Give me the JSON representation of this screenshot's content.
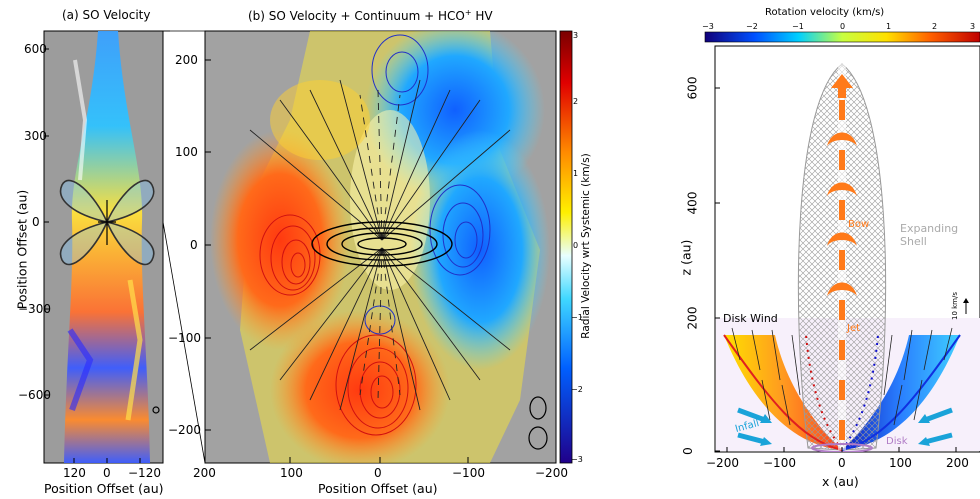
{
  "panel_a": {
    "title": "(a) SO Velocity",
    "xlabel": "Position Offset (au)",
    "ylabel": "Position Offset (au)",
    "xticks": [
      "120",
      "0",
      "−120"
    ],
    "yticks": [
      "600",
      "300",
      "0",
      "−300",
      "−600"
    ]
  },
  "panel_b": {
    "title_prefix": "(b) SO Velocity + Continuum + HCO",
    "title_sup": "+",
    "title_suffix": " HV",
    "xlabel": "Position Offset (au)",
    "ylabel": "",
    "xticks": [
      "200",
      "100",
      "0",
      "−100",
      "−200"
    ],
    "yticks": [
      "200",
      "100",
      "0",
      "−100",
      "−200"
    ],
    "colorbar": {
      "label": "Radial Velocity wrt Systemic (km/s)",
      "ticks": [
        "3",
        "2",
        "1",
        "0",
        "−1",
        "−2",
        "−3"
      ]
    }
  },
  "panel_c": {
    "colorbar_label": "Rotation velocity (km/s)",
    "colorbar_ticks": [
      "−3",
      "−2",
      "−1",
      "0",
      "1",
      "2",
      "3"
    ],
    "xlabel": "x (au)",
    "ylabel": "z (au)",
    "xticks": [
      "−200",
      "−100",
      "0",
      "100",
      "200"
    ],
    "yticks": [
      "600",
      "400",
      "200",
      "0"
    ],
    "annotations": {
      "bow": "Bow",
      "jet": "Jet",
      "shell": "Expanding Shell",
      "shell_line1": "Expanding",
      "shell_line2": "Shell",
      "disk_wind": "Disk Wind",
      "infall": "Infall",
      "disk": "Disk",
      "scale": "10 km/s"
    }
  },
  "colors": {
    "jet": "#ff7a1a",
    "infall": "#1aa3d9",
    "disk": "#b07cc6",
    "shell": "#bbbbbb",
    "blue_contour": "#2030c8",
    "red_contour": "#c01010"
  },
  "chart_data": [
    {
      "type": "heatmap",
      "title": "(a) SO Velocity",
      "xlabel": "Position Offset (au)",
      "ylabel": "Position Offset (au)",
      "xlim": [
        180,
        -180
      ],
      "ylim": [
        -760,
        640
      ],
      "x_ticks": [
        120,
        0,
        -120
      ],
      "y_ticks": [
        600,
        300,
        0,
        -300,
        -600
      ]
    },
    {
      "type": "heatmap",
      "title": "(b) SO Velocity + Continuum + HCO+ HV",
      "xlabel": "Position Offset (au)",
      "colorbar_label": "Radial Velocity wrt Systemic (km/s)",
      "colorbar_range": [
        -3,
        3
      ],
      "xlim": [
        200,
        -200
      ],
      "ylim": [
        -245,
        245
      ],
      "x_ticks": [
        200,
        100,
        0,
        -100,
        -200
      ],
      "y_ticks": [
        200,
        100,
        0,
        -100,
        -200
      ]
    },
    {
      "type": "diagram",
      "xlabel": "x (au)",
      "ylabel": "z (au)",
      "colorbar_label": "Rotation velocity (km/s)",
      "colorbar_range": [
        -3,
        3
      ],
      "xlim": [
        -230,
        230
      ],
      "ylim": [
        0,
        650
      ],
      "x_ticks": [
        -200,
        -100,
        0,
        100,
        200
      ],
      "y_ticks": [
        0,
        200,
        400,
        600
      ]
    }
  ]
}
